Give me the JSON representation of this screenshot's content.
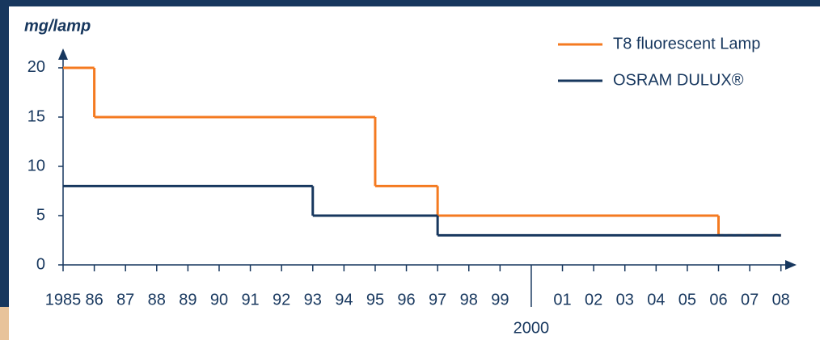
{
  "chart_data": {
    "type": "line",
    "style": "step",
    "ylabel": "mg/lamp",
    "xlim": [
      1985,
      2008.5
    ],
    "ylim": [
      0,
      21.8
    ],
    "yticks": [
      0,
      5,
      10,
      15,
      20
    ],
    "xticks": [
      1985,
      {
        "value": 1986,
        "label": "86"
      },
      {
        "value": 1987,
        "label": "87"
      },
      {
        "value": 1988,
        "label": "88"
      },
      {
        "value": 1989,
        "label": "89"
      },
      {
        "value": 1990,
        "label": "90"
      },
      {
        "value": 1991,
        "label": "91"
      },
      {
        "value": 1992,
        "label": "92"
      },
      {
        "value": 1993,
        "label": "93"
      },
      {
        "value": 1994,
        "label": "94"
      },
      {
        "value": 1995,
        "label": "95"
      },
      {
        "value": 1996,
        "label": "96"
      },
      {
        "value": 1997,
        "label": "97"
      },
      {
        "value": 1998,
        "label": "98"
      },
      {
        "value": 1999,
        "label": "99"
      },
      2000,
      {
        "value": 2001,
        "label": "01"
      },
      {
        "value": 2002,
        "label": "02"
      },
      {
        "value": 2003,
        "label": "03"
      },
      {
        "value": 2004,
        "label": "04"
      },
      {
        "value": 2005,
        "label": "05"
      },
      {
        "value": 2006,
        "label": "06"
      },
      {
        "value": 2007,
        "label": "07"
      },
      {
        "value": 2008,
        "label": "08"
      }
    ],
    "legend": "top-right",
    "series": [
      {
        "name": "T8 fluorescent Lamp",
        "color": "#f47a20",
        "x": [
          1985,
          1986,
          1995,
          1997,
          2006,
          2008
        ],
        "values": [
          20,
          15,
          8,
          5,
          3,
          3
        ],
        "dash_last_segment": true
      },
      {
        "name": "OSRAM DULUX®",
        "color": "#17375e",
        "x": [
          1985,
          1993,
          1997,
          2008
        ],
        "values": [
          8,
          5,
          3,
          3
        ]
      }
    ]
  }
}
